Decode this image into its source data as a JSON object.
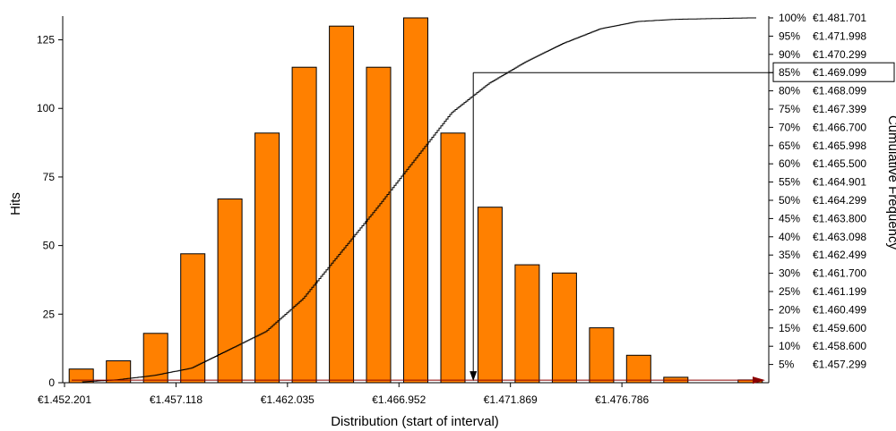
{
  "chart_data": {
    "type": "bar",
    "xlabel": "Distribution (start of interval)",
    "ylabel": "Hits",
    "y2label": "Cumulative Frequency",
    "ylim": [
      0,
      133
    ],
    "y_ticks": [
      0,
      25,
      50,
      75,
      100,
      125
    ],
    "bars": {
      "color": "#ff8000",
      "values": [
        5,
        8,
        18,
        47,
        67,
        91,
        115,
        130,
        115,
        133,
        91,
        64,
        43,
        40,
        20,
        10,
        2,
        0,
        1
      ]
    },
    "x_tick_labels": [
      "€1.452.201",
      "€1.457.118",
      "€1.462.035",
      "€1.466.952",
      "€1.471.869",
      "€1.476.786"
    ],
    "x_tick_bar_index": [
      0,
      3,
      6,
      9,
      12,
      15
    ],
    "cumulative_curve": {
      "color": "#000000",
      "bar_index": [
        -0.5,
        0,
        1,
        2,
        3,
        4,
        5,
        6,
        7,
        8,
        9,
        10,
        11,
        12,
        13,
        14,
        15,
        16,
        17,
        18
      ],
      "percent": [
        0,
        0.2,
        0.8,
        2.0,
        4.0,
        9.0,
        14.0,
        23.0,
        35.5,
        48.0,
        61.0,
        74.0,
        82.0,
        88.0,
        93.0,
        97.0,
        99.0,
        99.6,
        99.8,
        100
      ]
    },
    "percentiles": [
      {
        "pct": "100%",
        "value": "€1.481.701"
      },
      {
        "pct": "95%",
        "value": "€1.471.998"
      },
      {
        "pct": "90%",
        "value": "€1.470.299"
      },
      {
        "pct": "85%",
        "value": "€1.469.099"
      },
      {
        "pct": "80%",
        "value": "€1.468.099"
      },
      {
        "pct": "75%",
        "value": "€1.467.399"
      },
      {
        "pct": "70%",
        "value": "€1.466.700"
      },
      {
        "pct": "65%",
        "value": "€1.465.998"
      },
      {
        "pct": "60%",
        "value": "€1.465.500"
      },
      {
        "pct": "55%",
        "value": "€1.464.901"
      },
      {
        "pct": "50%",
        "value": "€1.464.299"
      },
      {
        "pct": "45%",
        "value": "€1.463.800"
      },
      {
        "pct": "40%",
        "value": "€1.463.098"
      },
      {
        "pct": "35%",
        "value": "€1.462.499"
      },
      {
        "pct": "30%",
        "value": "€1.461.700"
      },
      {
        "pct": "25%",
        "value": "€1.461.199"
      },
      {
        "pct": "20%",
        "value": "€1.460.499"
      },
      {
        "pct": "15%",
        "value": "€1.459.600"
      },
      {
        "pct": "10%",
        "value": "€1.458.600"
      },
      {
        "pct": "5%",
        "value": "€1.457.299"
      }
    ],
    "highlight": {
      "pct": 85,
      "bar_index": 11.0,
      "label_index": 3,
      "color": "#000000"
    },
    "baseline_arrow": {
      "color": "#8b0000",
      "percent": 0.7
    }
  }
}
